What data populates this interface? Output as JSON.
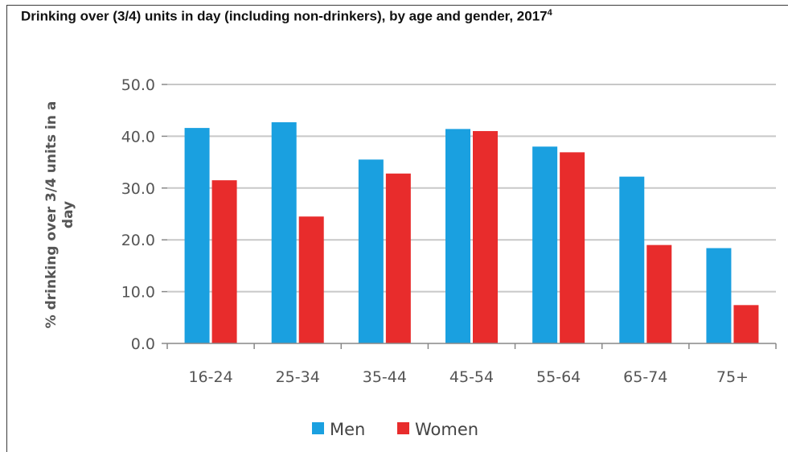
{
  "chart_data": {
    "type": "bar",
    "title": "Drinking over (3/4) units in day (including non-drinkers), by age and gender, 2017",
    "title_superscript": "4",
    "ylabel_lines": [
      "% drinking over 3/4 units in a",
      "day"
    ],
    "xlabel": "",
    "categories": [
      "16-24",
      "25-34",
      "35-44",
      "45-54",
      "55-64",
      "65-74",
      "75+"
    ],
    "series": [
      {
        "name": "Men",
        "color": "#1aa0e0",
        "values": [
          41.6,
          42.7,
          35.5,
          41.4,
          38.0,
          32.2,
          18.4
        ]
      },
      {
        "name": "Women",
        "color": "#e82c2c",
        "values": [
          31.5,
          24.5,
          32.8,
          41.0,
          36.9,
          19.0,
          7.4
        ]
      }
    ],
    "ylim": [
      0,
      50
    ],
    "yticks": [
      "0.0",
      "10.0",
      "20.0",
      "30.0",
      "40.0",
      "50.0"
    ],
    "grid": true,
    "legend_position": "bottom"
  }
}
